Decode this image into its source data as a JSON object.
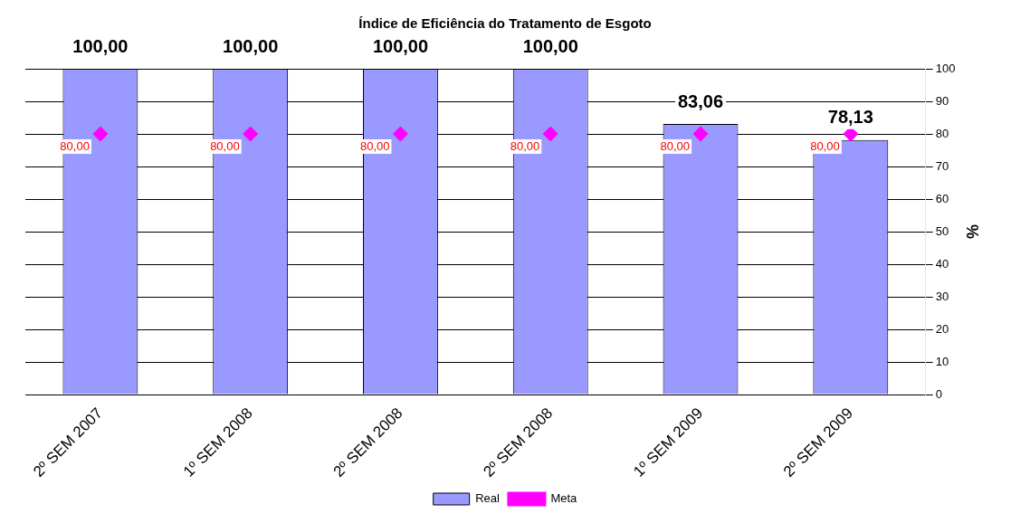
{
  "chart_data": {
    "type": "bar",
    "title": "Índice de Eficiência do Tratamento de Esgoto",
    "ylabel": "%",
    "categories": [
      "2º SEM 2007",
      "1º SEM 2008",
      "2º SEM 2008",
      "2º SEM 2008",
      "1º SEM 2009",
      "2º SEM 2009"
    ],
    "series": [
      {
        "name": "Real",
        "color": "#9999ff",
        "values": [
          100,
          100,
          100,
          100,
          83.06,
          78.13
        ],
        "value_labels": [
          "100,00",
          "100,00",
          "100,00",
          "100,00",
          "83,06",
          "78,13"
        ]
      },
      {
        "name": "Meta",
        "type": "scatter",
        "color": "#ff00ff",
        "marker": "diamond",
        "values": [
          80,
          80,
          80,
          80,
          80,
          80
        ],
        "value_labels": [
          "80,00",
          "80,00",
          "80,00",
          "80,00",
          "80,00",
          "80,00"
        ]
      }
    ],
    "ylim": [
      0,
      100
    ],
    "yticks": [
      0,
      10,
      20,
      30,
      40,
      50,
      60,
      70,
      80,
      90,
      100
    ],
    "grid": "y",
    "legend": "bottom"
  }
}
